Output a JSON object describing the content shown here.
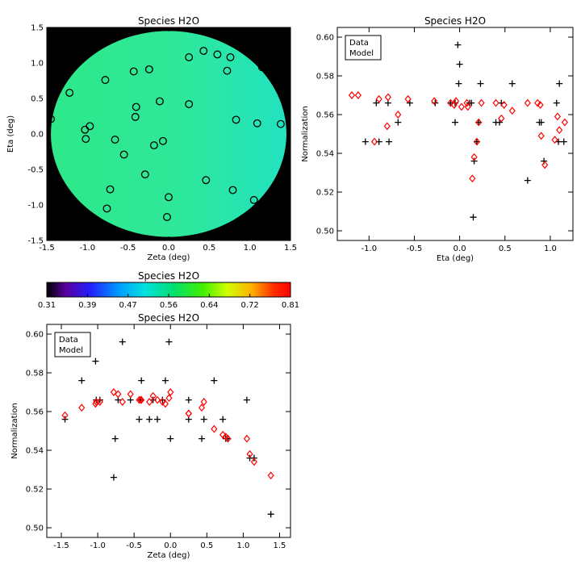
{
  "chart_data": [
    {
      "type": "heatmap",
      "title": "Species H2O",
      "xlabel": "Zeta (deg)",
      "ylabel": "Eta (deg)",
      "xlim": [
        -1.5,
        1.5
      ],
      "ylim": [
        -1.5,
        1.5
      ],
      "xticks": [
        "-1.5",
        "-1.0",
        "-0.5",
        "0.0",
        "0.5",
        "1.0",
        "1.5"
      ],
      "yticks": [
        "-1.5",
        "-1.0",
        "-0.5",
        "0.0",
        "0.5",
        "1.0",
        "1.5"
      ],
      "circle_radius_deg": 1.45,
      "points": [
        [
          -1.45,
          0.21
        ],
        [
          -1.22,
          0.58
        ],
        [
          -1.03,
          0.06
        ],
        [
          -1.02,
          -0.07
        ],
        [
          -0.97,
          0.11
        ],
        [
          -0.78,
          0.76
        ],
        [
          -0.72,
          -0.78
        ],
        [
          -0.76,
          -1.05
        ],
        [
          -0.66,
          -0.08
        ],
        [
          -0.55,
          -0.29
        ],
        [
          -0.43,
          0.88
        ],
        [
          -0.41,
          0.24
        ],
        [
          -0.4,
          0.38
        ],
        [
          -0.29,
          -0.57
        ],
        [
          -0.24,
          0.91
        ],
        [
          -0.18,
          -0.16
        ],
        [
          -0.11,
          0.46
        ],
        [
          -0.07,
          -0.1
        ],
        [
          -0.02,
          -1.17
        ],
        [
          0.0,
          -0.89
        ],
        [
          0.25,
          1.08
        ],
        [
          0.25,
          0.42
        ],
        [
          0.43,
          1.17
        ],
        [
          0.46,
          -0.65
        ],
        [
          0.6,
          1.12
        ],
        [
          0.72,
          0.89
        ],
        [
          0.76,
          1.08
        ],
        [
          0.79,
          -0.79
        ],
        [
          0.83,
          0.2
        ],
        [
          1.05,
          -0.93
        ],
        [
          1.09,
          0.15
        ],
        [
          1.15,
          0.94
        ],
        [
          1.38,
          0.14
        ]
      ],
      "colors": {
        "fill": "#2ee88a",
        "fill_right": "#22e2c0",
        "background": "#000000"
      }
    },
    {
      "type": "colorbar",
      "title": "Species H2O",
      "ticks": [
        "0.31",
        "0.39",
        "0.47",
        "0.56",
        "0.64",
        "0.72",
        "0.81"
      ]
    },
    {
      "type": "scatter",
      "title": "Species H2O",
      "xlabel": "Eta (deg)",
      "ylabel": "Normalization",
      "xlim": [
        -1.35,
        1.25
      ],
      "ylim": [
        0.495,
        0.605
      ],
      "xticks": [
        -1.0,
        -0.5,
        0.0,
        0.5,
        1.0
      ],
      "xtick_labels": [
        "-1.0",
        "-0.5",
        "0.0",
        "0.5",
        "1.0"
      ],
      "yticks": [
        0.5,
        0.52,
        0.54,
        0.56,
        0.58,
        0.6
      ],
      "ytick_labels": [
        "0.50",
        "0.52",
        "0.54",
        "0.56",
        "0.58",
        "0.60"
      ],
      "legend": {
        "position": "top-left",
        "entries": [
          "Data",
          "Model"
        ]
      },
      "series": [
        {
          "name": "Data",
          "marker": "plus",
          "color": "#000000",
          "points": [
            [
              -1.04,
              0.546
            ],
            [
              -0.92,
              0.566
            ],
            [
              -0.89,
              0.546
            ],
            [
              -0.79,
              0.566
            ],
            [
              -0.78,
              0.546
            ],
            [
              -0.68,
              0.556
            ],
            [
              -0.55,
              0.566
            ],
            [
              -0.27,
              0.566
            ],
            [
              -0.1,
              0.566
            ],
            [
              -0.05,
              0.566
            ],
            [
              -0.05,
              0.556
            ],
            [
              -0.02,
              0.596
            ],
            [
              -0.01,
              0.576
            ],
            [
              0.0,
              0.586
            ],
            [
              0.11,
              0.566
            ],
            [
              0.13,
              0.566
            ],
            [
              0.15,
              0.507
            ],
            [
              0.16,
              0.536
            ],
            [
              0.19,
              0.546
            ],
            [
              0.21,
              0.556
            ],
            [
              0.23,
              0.576
            ],
            [
              0.4,
              0.556
            ],
            [
              0.44,
              0.556
            ],
            [
              0.46,
              0.566
            ],
            [
              0.58,
              0.576
            ],
            [
              0.75,
              0.526
            ],
            [
              0.88,
              0.556
            ],
            [
              0.9,
              0.556
            ],
            [
              0.93,
              0.536
            ],
            [
              1.07,
              0.566
            ],
            [
              1.09,
              0.546
            ],
            [
              1.1,
              0.576
            ],
            [
              1.15,
              0.546
            ]
          ]
        },
        {
          "name": "Model",
          "marker": "diamond",
          "color": "#ff0000",
          "points": [
            [
              -1.19,
              0.57
            ],
            [
              -1.12,
              0.57
            ],
            [
              -0.94,
              0.546
            ],
            [
              -0.89,
              0.568
            ],
            [
              -0.8,
              0.554
            ],
            [
              -0.79,
              0.569
            ],
            [
              -0.68,
              0.56
            ],
            [
              -0.57,
              0.568
            ],
            [
              -0.28,
              0.567
            ],
            [
              -0.1,
              0.566
            ],
            [
              -0.06,
              0.565
            ],
            [
              -0.04,
              0.567
            ],
            [
              0.02,
              0.564
            ],
            [
              0.08,
              0.566
            ],
            [
              0.09,
              0.564
            ],
            [
              0.14,
              0.527
            ],
            [
              0.16,
              0.538
            ],
            [
              0.19,
              0.546
            ],
            [
              0.21,
              0.556
            ],
            [
              0.24,
              0.566
            ],
            [
              0.4,
              0.566
            ],
            [
              0.46,
              0.558
            ],
            [
              0.49,
              0.565
            ],
            [
              0.58,
              0.562
            ],
            [
              0.75,
              0.566
            ],
            [
              0.86,
              0.566
            ],
            [
              0.89,
              0.565
            ],
            [
              0.9,
              0.549
            ],
            [
              0.94,
              0.534
            ],
            [
              1.05,
              0.547
            ],
            [
              1.08,
              0.559
            ],
            [
              1.1,
              0.552
            ],
            [
              1.16,
              0.556
            ]
          ]
        }
      ]
    },
    {
      "type": "scatter",
      "title": "Species H2O",
      "xlabel": "Zeta (deg)",
      "ylabel": "Normalization",
      "xlim": [
        -1.7,
        1.65
      ],
      "ylim": [
        0.495,
        0.605
      ],
      "xticks": [
        -1.5,
        -1.0,
        -0.5,
        0.0,
        0.5,
        1.0,
        1.5
      ],
      "xtick_labels": [
        "-1.5",
        "-1.0",
        "-0.5",
        "0.0",
        "0.5",
        "1.0",
        "1.5"
      ],
      "yticks": [
        0.5,
        0.52,
        0.54,
        0.56,
        0.58,
        0.6
      ],
      "ytick_labels": [
        "0.50",
        "0.52",
        "0.54",
        "0.56",
        "0.58",
        "0.60"
      ],
      "legend": {
        "position": "top-left",
        "entries": [
          "Data",
          "Model"
        ]
      },
      "series": [
        {
          "name": "Data",
          "marker": "plus",
          "color": "#000000",
          "points": [
            [
              -1.45,
              0.556
            ],
            [
              -1.22,
              0.576
            ],
            [
              -1.03,
              0.586
            ],
            [
              -1.02,
              0.566
            ],
            [
              -0.97,
              0.566
            ],
            [
              -0.78,
              0.526
            ],
            [
              -0.76,
              0.546
            ],
            [
              -0.72,
              0.566
            ],
            [
              -0.66,
              0.596
            ],
            [
              -0.55,
              0.566
            ],
            [
              -0.43,
              0.556
            ],
            [
              -0.41,
              0.566
            ],
            [
              -0.4,
              0.576
            ],
            [
              -0.29,
              0.556
            ],
            [
              -0.24,
              0.566
            ],
            [
              -0.18,
              0.556
            ],
            [
              -0.11,
              0.566
            ],
            [
              -0.07,
              0.576
            ],
            [
              -0.02,
              0.596
            ],
            [
              0.0,
              0.546
            ],
            [
              0.25,
              0.566
            ],
            [
              0.25,
              0.556
            ],
            [
              0.43,
              0.546
            ],
            [
              0.46,
              0.556
            ],
            [
              0.6,
              0.576
            ],
            [
              0.72,
              0.556
            ],
            [
              0.76,
              0.546
            ],
            [
              0.79,
              0.546
            ],
            [
              1.05,
              0.566
            ],
            [
              1.09,
              0.536
            ],
            [
              1.15,
              0.536
            ],
            [
              1.38,
              0.507
            ]
          ]
        },
        {
          "name": "Model",
          "marker": "diamond",
          "color": "#ff0000",
          "points": [
            [
              -1.45,
              0.558
            ],
            [
              -1.22,
              0.562
            ],
            [
              -1.03,
              0.564
            ],
            [
              -1.02,
              0.565
            ],
            [
              -0.97,
              0.565
            ],
            [
              -0.78,
              0.57
            ],
            [
              -0.72,
              0.569
            ],
            [
              -0.66,
              0.565
            ],
            [
              -0.55,
              0.569
            ],
            [
              -0.43,
              0.566
            ],
            [
              -0.41,
              0.566
            ],
            [
              -0.4,
              0.566
            ],
            [
              -0.29,
              0.565
            ],
            [
              -0.24,
              0.568
            ],
            [
              -0.18,
              0.566
            ],
            [
              -0.11,
              0.565
            ],
            [
              -0.07,
              0.564
            ],
            [
              -0.02,
              0.567
            ],
            [
              0.0,
              0.57
            ],
            [
              0.25,
              0.559
            ],
            [
              0.25,
              0.559
            ],
            [
              0.43,
              0.562
            ],
            [
              0.46,
              0.565
            ],
            [
              0.6,
              0.551
            ],
            [
              0.72,
              0.548
            ],
            [
              0.76,
              0.547
            ],
            [
              0.79,
              0.546
            ],
            [
              1.05,
              0.546
            ],
            [
              1.09,
              0.538
            ],
            [
              1.15,
              0.534
            ],
            [
              1.38,
              0.527
            ]
          ]
        }
      ]
    }
  ]
}
